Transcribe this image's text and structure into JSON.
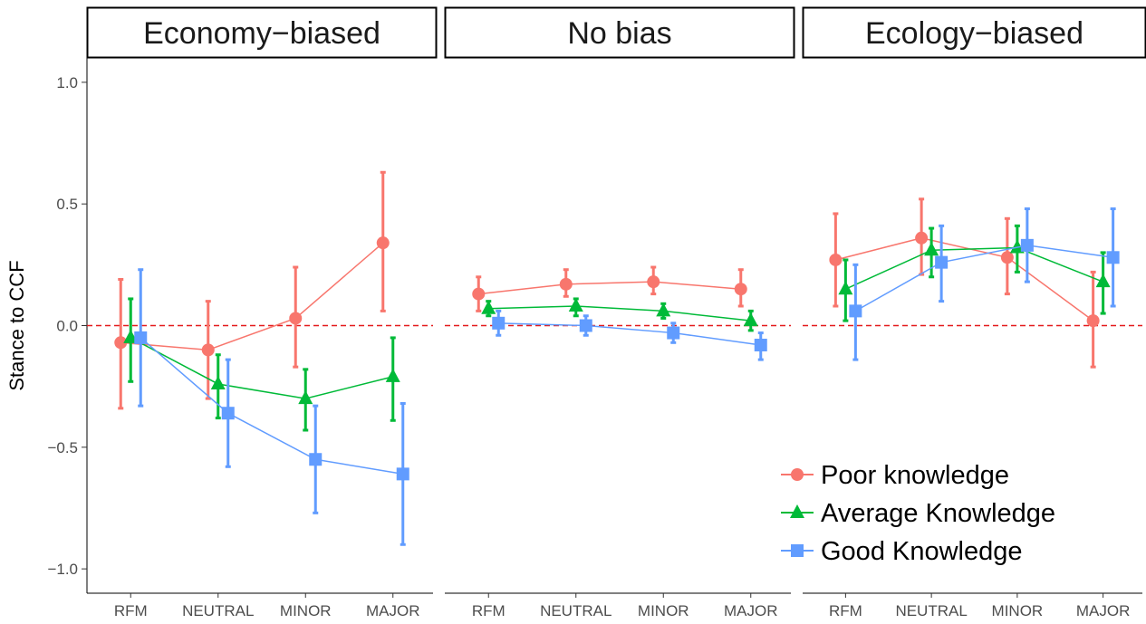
{
  "chart_data": {
    "type": "line",
    "ylabel": "Stance to CCF",
    "ylim": [
      -1.1,
      1.1
    ],
    "yticks": [
      1.0,
      0.5,
      0.0,
      -0.5,
      -1.0
    ],
    "ytick_labels": [
      "1.0",
      "0.5",
      "0.0",
      "−0.5",
      "−1.0"
    ],
    "categories": [
      "RFM",
      "NEUTRAL",
      "MINOR",
      "MAJOR"
    ],
    "reference_line": {
      "y": 0,
      "style": "dashed",
      "color": "#e41a1c"
    },
    "grid": false,
    "legend_position": "bottom-right",
    "panels": [
      {
        "title": "Economy−biased",
        "series": [
          {
            "name": "Poor knowledge",
            "color": "#f8766d",
            "marker": "circle",
            "values": [
              -0.07,
              -0.1,
              0.03,
              0.34
            ],
            "lower": [
              -0.34,
              -0.3,
              -0.17,
              0.06
            ],
            "upper": [
              0.19,
              0.1,
              0.24,
              0.63
            ]
          },
          {
            "name": "Average Knowledge",
            "color": "#00ba38",
            "marker": "triangle",
            "values": [
              -0.05,
              -0.24,
              -0.3,
              -0.21
            ],
            "lower": [
              -0.23,
              -0.38,
              -0.43,
              -0.39
            ],
            "upper": [
              0.11,
              -0.12,
              -0.18,
              -0.05
            ]
          },
          {
            "name": "Good Knowledge",
            "color": "#619cff",
            "marker": "square",
            "values": [
              -0.05,
              -0.36,
              -0.55,
              -0.61
            ],
            "lower": [
              -0.33,
              -0.58,
              -0.77,
              -0.9
            ],
            "upper": [
              0.23,
              -0.14,
              -0.33,
              -0.32
            ]
          }
        ]
      },
      {
        "title": "No bias",
        "series": [
          {
            "name": "Poor knowledge",
            "color": "#f8766d",
            "marker": "circle",
            "values": [
              0.13,
              0.17,
              0.18,
              0.15
            ],
            "lower": [
              0.06,
              0.12,
              0.13,
              0.08
            ],
            "upper": [
              0.2,
              0.23,
              0.24,
              0.23
            ]
          },
          {
            "name": "Average Knowledge",
            "color": "#00ba38",
            "marker": "triangle",
            "values": [
              0.07,
              0.08,
              0.06,
              0.02
            ],
            "lower": [
              0.04,
              0.04,
              0.03,
              -0.02
            ],
            "upper": [
              0.1,
              0.11,
              0.09,
              0.06
            ]
          },
          {
            "name": "Good Knowledge",
            "color": "#619cff",
            "marker": "square",
            "values": [
              0.01,
              0.0,
              -0.03,
              -0.08
            ],
            "lower": [
              -0.04,
              -0.04,
              -0.07,
              -0.14
            ],
            "upper": [
              0.06,
              0.04,
              0.01,
              -0.03
            ]
          }
        ]
      },
      {
        "title": "Ecology−biased",
        "series": [
          {
            "name": "Poor knowledge",
            "color": "#f8766d",
            "marker": "circle",
            "values": [
              0.27,
              0.36,
              0.28,
              0.02
            ],
            "lower": [
              0.08,
              0.21,
              0.13,
              -0.17
            ],
            "upper": [
              0.46,
              0.52,
              0.44,
              0.22
            ]
          },
          {
            "name": "Average Knowledge",
            "color": "#00ba38",
            "marker": "triangle",
            "values": [
              0.15,
              0.31,
              0.32,
              0.18
            ],
            "lower": [
              0.02,
              0.2,
              0.22,
              0.05
            ],
            "upper": [
              0.27,
              0.4,
              0.41,
              0.3
            ]
          },
          {
            "name": "Good Knowledge",
            "color": "#619cff",
            "marker": "square",
            "values": [
              0.06,
              0.26,
              0.33,
              0.28
            ],
            "lower": [
              -0.14,
              0.1,
              0.18,
              0.08
            ],
            "upper": [
              0.25,
              0.41,
              0.48,
              0.48
            ]
          }
        ]
      }
    ]
  }
}
